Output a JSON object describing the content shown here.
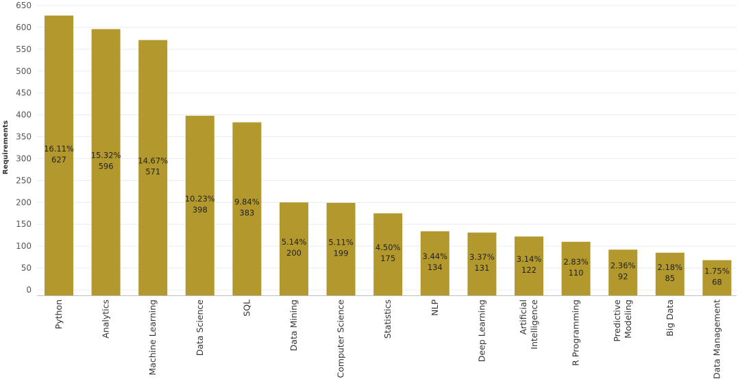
{
  "chart_data": {
    "type": "bar",
    "ylabel": "Requirements",
    "xlabel": "",
    "ylim": [
      0,
      650
    ],
    "yticks": [
      0,
      50,
      100,
      150,
      200,
      250,
      300,
      350,
      400,
      450,
      500,
      550,
      600,
      650
    ],
    "grid": true,
    "bar_color": "#b3982e",
    "categories": [
      [
        "Python"
      ],
      [
        "Analytics"
      ],
      [
        "Machine Learning"
      ],
      [
        "Data Science"
      ],
      [
        "SQL"
      ],
      [
        "Data Mining"
      ],
      [
        "Computer Science"
      ],
      [
        "Statistics"
      ],
      [
        "NLP"
      ],
      [
        "Deep Learning"
      ],
      [
        "Artificial",
        "Intelligence"
      ],
      [
        "R Programming"
      ],
      [
        "Predictive",
        "Modeling"
      ],
      [
        "Big Data"
      ],
      [
        "Data Management"
      ]
    ],
    "values": [
      627,
      596,
      571,
      398,
      383,
      200,
      199,
      175,
      134,
      131,
      122,
      110,
      92,
      85,
      68
    ],
    "percent_labels": [
      "16.11%",
      "15.32%",
      "14.67%",
      "10.23%",
      "9.84%",
      "5.14%",
      "5.11%",
      "4.50%",
      "3.44%",
      "3.37%",
      "3.14%",
      "2.83%",
      "2.36%",
      "2.18%",
      "1.75%"
    ]
  }
}
